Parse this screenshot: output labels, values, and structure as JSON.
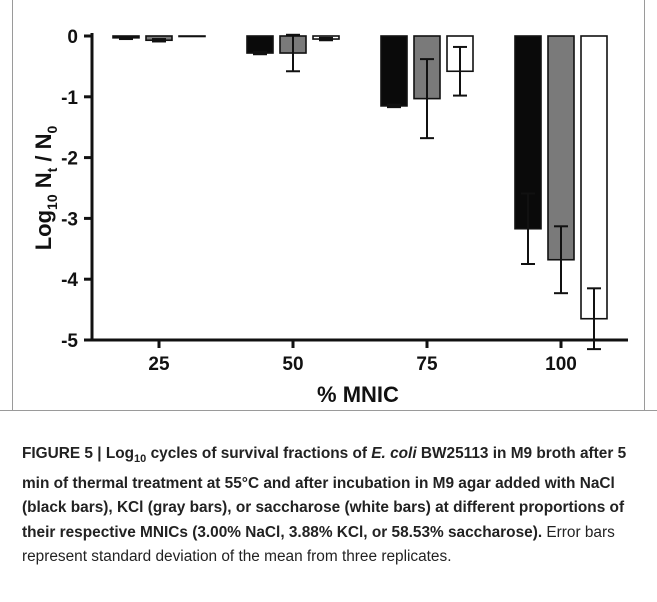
{
  "chart_data": {
    "type": "bar",
    "categories": [
      "25",
      "50",
      "75",
      "100"
    ],
    "series": [
      {
        "name": "NaCl",
        "color": "#0a0a0a",
        "values": [
          -0.03,
          -0.28,
          -1.15,
          -3.17
        ],
        "errors": [
          0.02,
          0.02,
          0.02,
          0.58
        ]
      },
      {
        "name": "KCl",
        "color": "#7a7a7a",
        "values": [
          -0.07,
          -0.28,
          -1.03,
          -3.68
        ],
        "errors": [
          0.02,
          0.3,
          0.65,
          0.55
        ]
      },
      {
        "name": "saccharose",
        "color": "#ffffff",
        "values": [
          0.0,
          -0.05,
          -0.58,
          -4.65
        ],
        "errors": [
          0.0,
          0.02,
          0.4,
          0.5
        ]
      }
    ],
    "title": "",
    "xlabel": "% MNIC",
    "ylabel_main": "Log",
    "ylabel_sub": "10",
    "ylabel_rest_1": " N",
    "ylabel_sub2": "t",
    "ylabel_rest_2": " / N",
    "ylabel_sub3": "0",
    "ylim": [
      -5,
      0
    ],
    "yticks": [
      "0",
      "-1",
      "-2",
      "-3",
      "-4",
      "-5"
    ],
    "grid": false,
    "legend": "none"
  },
  "caption": {
    "label": "FIGURE 5 | Log",
    "label_sub": "10",
    "bold_a": " cycles of survival fractions of ",
    "bold_italic": "E. coli",
    "bold_b": " BW25113 in M9 broth after 5 min of thermal treatment at 55°C and after incubation in M9 agar added with NaCl (black bars), KCl (gray bars), or saccharose (white bars) at different proportions of their respective MNICs (3.00% NaCl, 3.88% KCl, or 58.53% saccharose).",
    "normal": " Error bars represent standard deviation of the mean from three replicates."
  }
}
